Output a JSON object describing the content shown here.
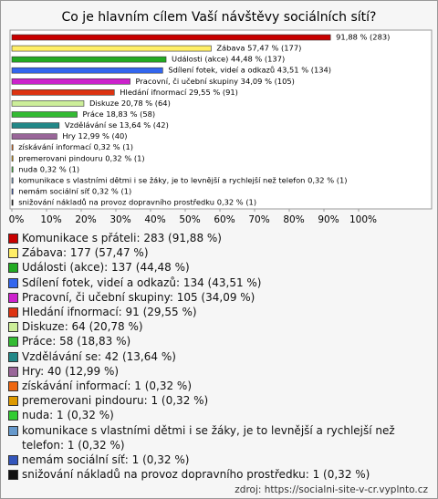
{
  "chart_data": {
    "type": "bar",
    "orientation": "horizontal",
    "title": "Co je hlavním cílem Vaší návštěvy sociálních sítí?",
    "values": [
      91.88,
      57.47,
      44.48,
      43.51,
      34.09,
      29.55,
      20.78,
      18.83,
      13.64,
      12.99,
      0.32,
      0.32,
      0.32,
      0.32,
      0.32,
      0.32
    ],
    "value_labels": [
      "91,88 % (283)",
      "Zábava 57,47 % (177)",
      "Události (akce) 44,48 % (137)",
      "Sdílení fotek, videí a odkazů 43,51 % (134)",
      "Pracovní, či učební skupiny 34,09 % (105)",
      "Hledání ifnormací 29,55 % (91)",
      "Diskuze 20,78 % (64)",
      "Práce 18,83 % (58)",
      "Vzdělávání se 13,64 % (42)",
      "Hry 12,99 % (40)",
      "získávání informací 0,32 % (1)",
      "premerovani pindouru 0,32 % (1)",
      "nuda 0,32 % (1)",
      "komunikace s vlastními dětmi i se žáky, je to levnější a rychlejší než telefon 0,32 % (1)",
      "nemám sociální síť 0,32 % (1)",
      "snižování nákladů na provoz dopravního prostředku 0,32 % (1)"
    ],
    "colors": [
      "#c80000",
      "#ffee66",
      "#22aa22",
      "#3366ee",
      "#cc22cc",
      "#dd3311",
      "#ccee99",
      "#33bb33",
      "#228888",
      "#996699",
      "#ee6611",
      "#dd9900",
      "#33cc33",
      "#6699cc",
      "#3355bb",
      "#111111"
    ],
    "legend": [
      "Komunikace s přáteli: 283 (91,88 %)",
      "Zábava: 177 (57,47 %)",
      "Události (akce): 137 (44,48 %)",
      "Sdílení fotek, videí a odkazů: 134 (43,51 %)",
      "Pracovní, či učební skupiny: 105 (34,09 %)",
      "Hledání ifnormací: 91 (29,55 %)",
      "Diskuze: 64 (20,78 %)",
      "Práce: 58 (18,83 %)",
      "Vzdělávání se: 42 (13,64 %)",
      "Hry: 40 (12,99 %)",
      "získávání informací: 1 (0,32 %)",
      "premerovani pindouru: 1 (0,32 %)",
      "nuda: 1 (0,32 %)",
      "komunikace s vlastními dětmi i se žáky, je to levnější a rychlejší než telefon: 1 (0,32 %)",
      "nemám sociální síť: 1 (0,32 %)",
      "snižování nákladů na provoz dopravního prostředku: 1 (0,32 %)"
    ],
    "xlim": [
      0,
      100
    ],
    "xticks": [
      {
        "value": 0,
        "label": "0%"
      },
      {
        "value": 10,
        "label": "10%"
      },
      {
        "value": 20,
        "label": "20%"
      },
      {
        "value": 30,
        "label": "30%"
      },
      {
        "value": 40,
        "label": "40%"
      },
      {
        "value": 50,
        "label": "50%"
      },
      {
        "value": 60,
        "label": "60%"
      },
      {
        "value": 70,
        "label": "70%"
      },
      {
        "value": 80,
        "label": "80%"
      },
      {
        "value": 90,
        "label": "90%"
      },
      {
        "value": 100,
        "label": "100%"
      }
    ],
    "source": "zdroj: https://socialni-site-v-cr.vyplnto.cz"
  }
}
